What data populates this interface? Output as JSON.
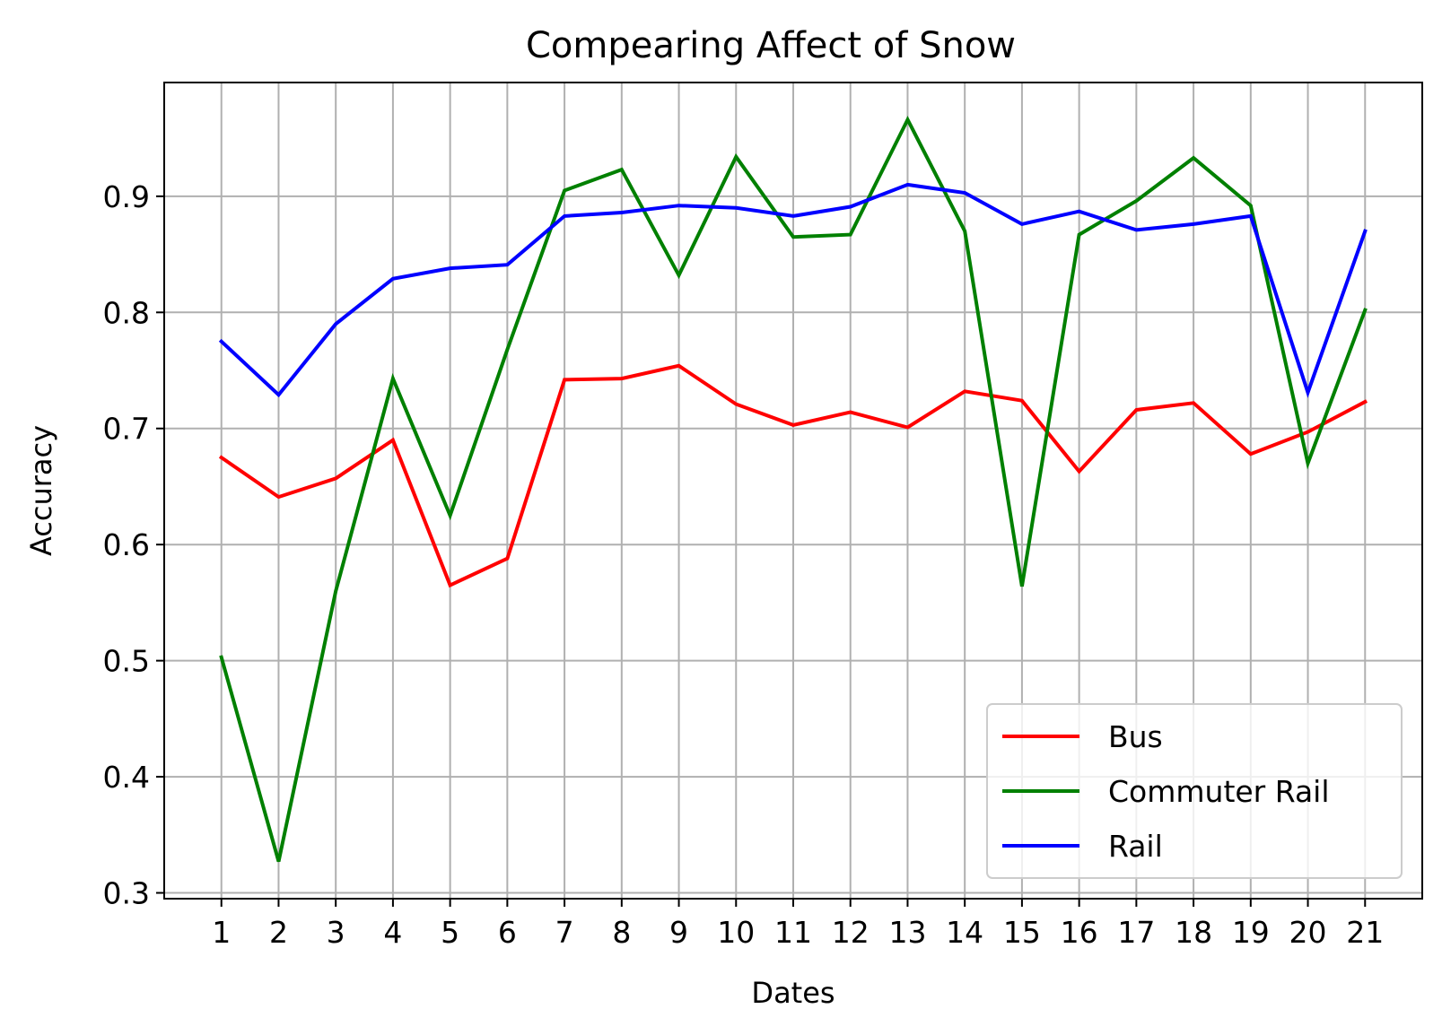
{
  "chart_data": {
    "type": "line",
    "title": "Compearing Affect of Snow",
    "xlabel": "Dates",
    "ylabel": "Accuracy",
    "x": [
      1,
      2,
      3,
      4,
      5,
      6,
      7,
      8,
      9,
      10,
      11,
      12,
      13,
      14,
      15,
      16,
      17,
      18,
      19,
      20,
      21
    ],
    "x_tick_labels": [
      "1",
      "2",
      "3",
      "4",
      "5",
      "6",
      "7",
      "8",
      "9",
      "10",
      "11",
      "12",
      "13",
      "14",
      "15",
      "16",
      "17",
      "18",
      "19",
      "20",
      "21"
    ],
    "y_ticks": [
      0.3,
      0.4,
      0.5,
      0.6,
      0.7,
      0.8,
      0.9
    ],
    "y_tick_labels": [
      "0.3",
      "0.4",
      "0.5",
      "0.6",
      "0.7",
      "0.8",
      "0.9"
    ],
    "xlim": [
      0,
      22
    ],
    "ylim": [
      0.295,
      0.998
    ],
    "grid": true,
    "legend_position": "lower right",
    "series": [
      {
        "name": "Bus",
        "color": "#ff0000",
        "values": [
          0.675,
          0.641,
          0.657,
          0.69,
          0.565,
          0.588,
          0.742,
          0.743,
          0.754,
          0.721,
          0.703,
          0.714,
          0.701,
          0.732,
          0.724,
          0.663,
          0.716,
          0.722,
          0.678,
          0.697,
          0.723
        ]
      },
      {
        "name": "Commuter Rail",
        "color": "#008000",
        "values": [
          0.503,
          0.327,
          0.56,
          0.743,
          0.625,
          0.768,
          0.905,
          0.923,
          0.832,
          0.934,
          0.865,
          0.867,
          0.966,
          0.87,
          0.564,
          0.867,
          0.896,
          0.933,
          0.892,
          0.67,
          0.802
        ]
      },
      {
        "name": "Rail",
        "color": "#0000ff",
        "values": [
          0.775,
          0.729,
          0.79,
          0.829,
          0.838,
          0.841,
          0.883,
          0.886,
          0.892,
          0.89,
          0.883,
          0.891,
          0.91,
          0.903,
          0.876,
          0.887,
          0.871,
          0.876,
          0.883,
          0.731,
          0.87
        ]
      }
    ]
  }
}
